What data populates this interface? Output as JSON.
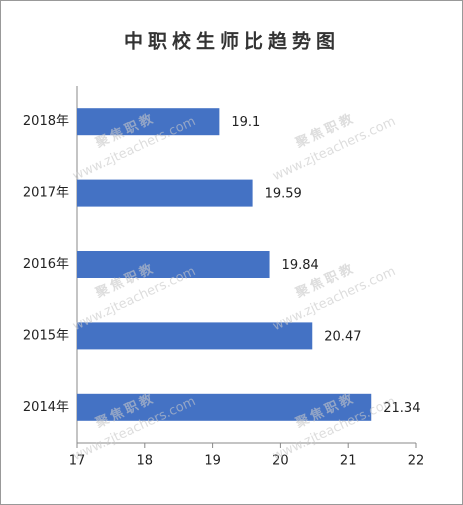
{
  "chart_data": {
    "type": "bar",
    "orientation": "horizontal",
    "title": "中职校生师比趋势图",
    "categories": [
      "2018年",
      "2017年",
      "2016年",
      "2015年",
      "2014年"
    ],
    "values": [
      19.1,
      19.59,
      19.84,
      20.47,
      21.34
    ],
    "color": "#4472c4",
    "xlim": [
      17,
      22
    ],
    "xticks": [
      17,
      18,
      19,
      20,
      21,
      22
    ],
    "grid": false,
    "watermark": [
      "聚焦职教",
      "www.zjteachers.com"
    ]
  }
}
